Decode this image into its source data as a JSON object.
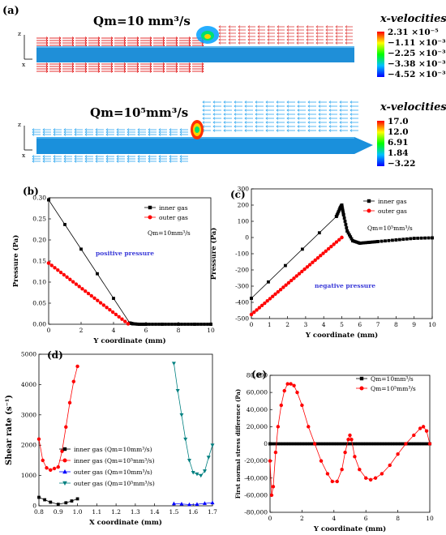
{
  "panel_a": {
    "label": "(a)",
    "top": {
      "flow_rate": "Qm=10 mm³/s",
      "legend_title": "x-velocities",
      "colorbar_labels": [
        "2.31 ×10⁻⁵",
        "−1.11 ×10⁻³",
        "−2.25 ×10⁻³",
        "−3.38 ×10⁻³",
        "−4.52 ×10⁻³"
      ],
      "colorbar_colors": [
        "#ff0000",
        "#ffff00",
        "#00ff00",
        "#00c0ff",
        "#0000ff"
      ]
    },
    "bottom": {
      "flow_rate": "Qm=10⁵mm³/s",
      "legend_title": "x-velocities",
      "colorbar_labels": [
        "17.0",
        "12.0",
        "6.91",
        "1.84",
        "−3.22"
      ],
      "colorbar_colors": [
        "#ff0000",
        "#ffff00",
        "#00ff00",
        "#00c0ff",
        "#0000ff"
      ]
    },
    "axis_glyphs": {
      "z": "z",
      "x": "x"
    }
  },
  "chart_data": [
    {
      "panel": "(b)",
      "type": "line",
      "xlabel": "Y coordinate (mm)",
      "ylabel": "Pressure (Pa)",
      "xlim": [
        0,
        10
      ],
      "ylim": [
        0,
        0.3
      ],
      "xticks": [
        "0",
        "2",
        "4",
        "6",
        "8",
        "10"
      ],
      "yticks": [
        "0.00",
        "0.05",
        "0.10",
        "0.15",
        "0.20",
        "0.25",
        "0.30"
      ],
      "legend_position": "top-right",
      "annotations": [
        "positive pressure",
        "Qm=10mm³/s"
      ],
      "series": [
        {
          "name": "inner gas",
          "color": "#000000",
          "marker": "square",
          "x": [
            0,
            5.0,
            5.2,
            5.6,
            6.0,
            7.0,
            8.0,
            9.0,
            10.0
          ],
          "y": [
            0.295,
            0.003,
            0.001,
            0.0,
            0.0,
            0.0,
            0.0,
            0.0,
            0.0
          ]
        },
        {
          "name": "outer gas",
          "color": "#ff0000",
          "marker": "circle",
          "x": [
            0,
            4.9
          ],
          "y": [
            0.145,
            0.001
          ]
        }
      ]
    },
    {
      "panel": "(c)",
      "type": "line",
      "xlabel": "Y coordinate (mm)",
      "ylabel": "Pressure (Pa)",
      "xlim": [
        0,
        10
      ],
      "ylim": [
        -500,
        300
      ],
      "xticks": [
        "0",
        "1",
        "2",
        "3",
        "4",
        "5",
        "6",
        "7",
        "8",
        "9",
        "10"
      ],
      "yticks": [
        "-500",
        "-400",
        "-300",
        "-200",
        "-100",
        "0",
        "100",
        "200",
        "300"
      ],
      "legend_position": "top-right",
      "annotations": [
        "negative pressure",
        "Qm=10⁵mm³/s"
      ],
      "series": [
        {
          "name": "inner gas",
          "color": "#000000",
          "marker": "square",
          "x": [
            0,
            4.7,
            4.9,
            5.0,
            5.1,
            5.3,
            5.6,
            6.0,
            6.5,
            7.0,
            8.0,
            9.0,
            10.0
          ],
          "y": [
            -375,
            130,
            180,
            200,
            140,
            40,
            -20,
            -35,
            -30,
            -25,
            -15,
            -5,
            -2
          ]
        },
        {
          "name": "outer gas",
          "color": "#ff0000",
          "marker": "circle",
          "x": [
            0,
            5.0
          ],
          "y": [
            -475,
            0
          ]
        }
      ]
    },
    {
      "panel": "(d)",
      "type": "scatter",
      "xlabel": "X coordinate (mm)",
      "ylabel": "Shear rate (s⁻¹)",
      "xlim": [
        0.8,
        1.7
      ],
      "ylim": [
        0,
        5000
      ],
      "xticks": [
        "0.8",
        "0.9",
        "1.0",
        "1.1",
        "1.2",
        "1.3",
        "1.4",
        "1.5",
        "1.6",
        "1.7"
      ],
      "yticks": [
        "0",
        "1000",
        "2000",
        "3000",
        "4000",
        "5000"
      ],
      "legend_position": "bottom-left",
      "series": [
        {
          "name": "inner gas (Qm=10mm³/s)",
          "color": "#000000",
          "marker": "square",
          "x": [
            0.8,
            0.83,
            0.86,
            0.9,
            0.94,
            0.97,
            1.0
          ],
          "y": [
            280,
            200,
            120,
            50,
            100,
            160,
            230
          ]
        },
        {
          "name": "inner gas (Qm=10⁵mm³/s)",
          "color": "#ff0000",
          "marker": "circle",
          "x": [
            0.8,
            0.82,
            0.84,
            0.86,
            0.88,
            0.9,
            0.92,
            0.94,
            0.96,
            0.98,
            1.0
          ],
          "y": [
            2200,
            1500,
            1250,
            1180,
            1230,
            1280,
            1800,
            2600,
            3400,
            4100,
            4600
          ]
        },
        {
          "name": "outer gas (Qm=10mm³/s)",
          "color": "#0000ff",
          "marker": "triangle-up",
          "x": [
            1.5,
            1.54,
            1.58,
            1.62,
            1.66,
            1.7
          ],
          "y": [
            70,
            60,
            40,
            50,
            80,
            100
          ]
        },
        {
          "name": "outer gas (Qm=10⁵mm³/s)",
          "color": "#008080",
          "marker": "triangle-down",
          "x": [
            1.5,
            1.52,
            1.54,
            1.56,
            1.58,
            1.6,
            1.62,
            1.64,
            1.66,
            1.68,
            1.7
          ],
          "y": [
            4700,
            3800,
            3000,
            2200,
            1500,
            1100,
            1050,
            1000,
            1150,
            1600,
            2000
          ]
        }
      ]
    },
    {
      "panel": "(e)",
      "type": "line",
      "xlabel": "Y coordinate (mm)",
      "ylabel": "First normal stress difference (Pa)",
      "xlim": [
        0,
        10
      ],
      "ylim": [
        -80000,
        80000
      ],
      "xticks": [
        "0",
        "2",
        "4",
        "6",
        "8",
        "10"
      ],
      "yticks": [
        "-80,000",
        "-60,000",
        "-40,000",
        "-20,000",
        "0",
        "20,000",
        "40,000",
        "60,000",
        "80,000"
      ],
      "legend_position": "top-right",
      "series": [
        {
          "name": "Qm=10mm³/s",
          "color": "#000000",
          "marker": "square",
          "x": [
            0,
            10
          ],
          "y": [
            0,
            0
          ]
        },
        {
          "name": "Qm=10⁵mm³/s",
          "color": "#ff0000",
          "marker": "circle",
          "x": [
            0.0,
            0.1,
            0.2,
            0.35,
            0.5,
            0.7,
            0.9,
            1.1,
            1.3,
            1.5,
            1.7,
            2.0,
            2.4,
            2.8,
            3.2,
            3.6,
            3.9,
            4.2,
            4.5,
            4.7,
            4.9,
            5.0,
            5.1,
            5.3,
            5.6,
            6.0,
            6.3,
            6.6,
            7.0,
            7.5,
            8.0,
            8.5,
            9.0,
            9.4,
            9.6,
            9.8,
            10.0
          ],
          "y": [
            -20000,
            -60000,
            -50000,
            -10000,
            20000,
            45000,
            62000,
            70000,
            70000,
            68000,
            60000,
            45000,
            20000,
            0,
            -20000,
            -35000,
            -44000,
            -44000,
            -30000,
            -10000,
            5000,
            10000,
            5000,
            -15000,
            -30000,
            -40000,
            -42000,
            -40000,
            -35000,
            -25000,
            -12000,
            0,
            10000,
            18000,
            20000,
            15000,
            0
          ]
        }
      ]
    }
  ]
}
